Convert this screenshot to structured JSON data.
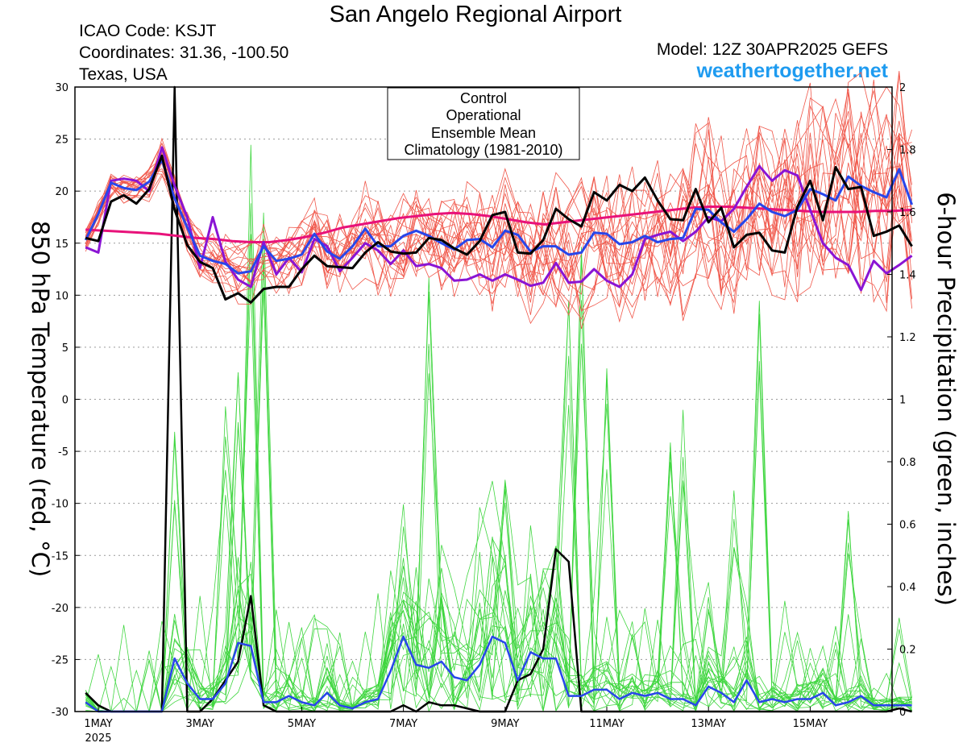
{
  "header": {
    "title": "San Angelo Regional Airport",
    "icao": "ICAO Code: KSJT",
    "coords": "Coordinates: 31.36, -100.50",
    "region": "Texas, USA",
    "model": "Model: 12Z 30APR2025 GEFS",
    "site": "weathertogether.net"
  },
  "colors": {
    "members_temp": "#f0574a",
    "members_precip": "#3fd63f",
    "control": "#000000",
    "operational": "#8a14d4",
    "ensemble_mean": "#2846ea",
    "climatology": "#e8127a"
  },
  "chart_data": {
    "type": "line",
    "title": "San Angelo Regional Airport",
    "ylabel": "850 hPa Temperature (red, °C)",
    "y2label": "6-hour Precipitation (green, inches)",
    "ylim": [
      -30,
      30
    ],
    "y2lim": [
      0,
      2
    ],
    "yticks": [
      "30",
      "25",
      "20",
      "15",
      "10",
      "5",
      "0",
      "-5",
      "-10",
      "-15",
      "-20",
      "-25",
      "-30"
    ],
    "y2ticks": [
      "2",
      "1.8",
      "1.6",
      "1.4",
      "1.2",
      "1",
      "0.8",
      "0.6",
      "0.4",
      "0.2",
      "0"
    ],
    "xticks": [
      {
        "day": 1,
        "label": "1MAY",
        "sub": "2025"
      },
      {
        "day": 3,
        "label": "3MAY",
        "sub": ""
      },
      {
        "day": 5,
        "label": "5MAY",
        "sub": ""
      },
      {
        "day": 7,
        "label": "7MAY",
        "sub": ""
      },
      {
        "day": 9,
        "label": "9MAY",
        "sub": ""
      },
      {
        "day": 11,
        "label": "11MAY",
        "sub": ""
      },
      {
        "day": 13,
        "label": "13MAY",
        "sub": ""
      },
      {
        "day": 15,
        "label": "15MAY",
        "sub": ""
      }
    ],
    "x_start_day": 0.75,
    "x_step_days": 0.25,
    "legend": {
      "position": "top-center",
      "entries": [
        {
          "name": "Control",
          "color": "#000000"
        },
        {
          "name": "Operational",
          "color": "#8a14d4"
        },
        {
          "name": "Ensemble Mean",
          "color": "#2846ea"
        },
        {
          "name": "Climatology (1981-2010)",
          "color": "#e8127a"
        }
      ]
    },
    "grid": "horizontal dotted",
    "series": [
      {
        "name": "Control",
        "axis": "temp",
        "values": [
          15.5,
          15.2,
          19.0,
          19.6,
          18.8,
          20.2,
          23.4,
          18.2,
          14.8,
          13.2,
          12.6,
          9.6,
          10.2,
          9.3,
          10.6,
          10.8,
          10.8,
          12.5,
          13.8,
          12.8,
          12.7,
          12.6,
          14.1,
          15.1,
          14.2,
          14.0,
          14.1,
          15.5,
          15.3,
          14.5,
          13.9,
          15.2,
          17.7,
          18.0,
          14.1,
          14.0,
          15.3,
          18.3,
          17.3,
          16.6,
          19.9,
          19.1,
          20.6,
          20.0,
          21.3,
          19.1,
          17.3,
          17.2,
          20.2,
          17.0,
          18.4,
          14.6,
          15.8,
          16.0,
          14.3,
          14.1,
          18.5,
          21.0,
          17.2,
          22.3,
          20.2,
          20.4,
          15.7,
          16.1,
          16.7,
          14.7
        ]
      },
      {
        "name": "Operational",
        "axis": "temp",
        "values": [
          14.6,
          14.1,
          21.0,
          21.2,
          21.0,
          20.0,
          24.2,
          20.5,
          17.5,
          12.6,
          17.5,
          13.2,
          11.5,
          10.8,
          15.1,
          12.0,
          13.6,
          12.2,
          15.4,
          14.7,
          12.3,
          13.6,
          15.0,
          14.3,
          13.0,
          14.3,
          12.8,
          13.0,
          12.6,
          11.4,
          11.5,
          12.0,
          11.4,
          12.0,
          11.5,
          10.9,
          11.2,
          13.1,
          11.2,
          11.3,
          12.5,
          11.4,
          10.8,
          12.0,
          15.4,
          15.8,
          16.1,
          15.2,
          16.1,
          17.5,
          17.1,
          18.3,
          20.4,
          22.4,
          21.0,
          22.0,
          21.5,
          18.2,
          15.0,
          13.6,
          12.9,
          10.5,
          13.3,
          12.1,
          12.9,
          13.8
        ]
      },
      {
        "name": "Ensemble Mean",
        "axis": "temp",
        "values": [
          15.3,
          17.8,
          20.8,
          20.3,
          20.1,
          20.9,
          23.0,
          19.3,
          16.5,
          13.8,
          13.3,
          13.0,
          12.1,
          12.3,
          14.7,
          13.3,
          13.5,
          13.9,
          15.9,
          14.2,
          13.5,
          14.7,
          16.4,
          14.7,
          14.7,
          15.7,
          16.2,
          15.7,
          15.0,
          14.4,
          15.3,
          15.4,
          14.6,
          16.2,
          15.8,
          14.2,
          14.7,
          14.7,
          13.9,
          14.1,
          16.0,
          15.9,
          14.9,
          15.1,
          15.7,
          15.1,
          15.4,
          15.5,
          18.3,
          18.2,
          17.0,
          16.1,
          17.3,
          18.8,
          18.0,
          17.6,
          18.2,
          20.2,
          19.7,
          19.1,
          21.4,
          20.5,
          19.9,
          19.4,
          22.1,
          18.7
        ]
      },
      {
        "name": "Climatology (1981-2010)",
        "axis": "temp",
        "values": [
          16.3,
          16.2,
          16.1,
          16.0,
          15.9,
          15.7,
          15.5,
          15.4,
          15.2,
          15.1,
          15.1,
          15.3,
          15.6,
          16.0,
          16.5,
          16.8,
          17.1,
          17.4,
          17.6,
          17.8,
          17.9,
          17.8,
          17.6,
          17.3,
          17.0,
          16.8,
          17.0,
          17.2,
          17.4,
          17.6,
          17.8,
          18.0,
          18.2,
          18.4,
          18.5,
          18.5,
          18.4,
          18.3,
          18.2,
          18.1,
          18.0,
          18.0,
          18.0,
          18.1,
          18.1,
          18.2
        ]
      },
      {
        "name": "Control precipitation",
        "axis": "precip",
        "values": [
          0.06,
          0.02,
          0.0,
          0.0,
          0.0,
          0.0,
          0.0,
          2.0,
          0.0,
          0.0,
          0.04,
          0.1,
          0.16,
          0.37,
          0.02,
          0.0,
          0.0,
          0.0,
          0.0,
          0.0,
          0.0,
          0.0,
          0.0,
          0.0,
          0.0,
          0.02,
          0.0,
          0.03,
          0.02,
          0.02,
          0.01,
          0.0,
          0.0,
          0.0,
          0.1,
          0.12,
          0.2,
          0.52,
          0.48,
          0.0,
          0.0,
          0.0,
          0.0,
          0.0,
          0.0,
          0.0,
          0.0,
          0.0,
          0.0,
          0.0,
          0.0,
          0.0,
          0.0,
          0.0,
          0.0,
          0.0,
          0.0,
          0.0,
          0.0,
          0.0,
          0.0,
          0.0,
          0.0,
          0.0,
          0.01,
          0.0
        ]
      },
      {
        "name": "Ensemble Mean precipitation",
        "axis": "precip",
        "values": [
          0.03,
          0.0,
          0.0,
          0.0,
          0.0,
          0.0,
          0.0,
          0.17,
          0.09,
          0.04,
          0.04,
          0.09,
          0.22,
          0.21,
          0.03,
          0.03,
          0.05,
          0.03,
          0.02,
          0.06,
          0.02,
          0.01,
          0.03,
          0.04,
          0.13,
          0.24,
          0.15,
          0.14,
          0.16,
          0.11,
          0.1,
          0.15,
          0.24,
          0.22,
          0.1,
          0.19,
          0.17,
          0.17,
          0.05,
          0.05,
          0.07,
          0.07,
          0.04,
          0.06,
          0.05,
          0.06,
          0.04,
          0.04,
          0.02,
          0.08,
          0.06,
          0.03,
          0.1,
          0.03,
          0.04,
          0.03,
          0.04,
          0.04,
          0.06,
          0.02,
          0.03,
          0.05,
          0.02,
          0.02,
          0.02,
          0.02
        ]
      }
    ]
  }
}
